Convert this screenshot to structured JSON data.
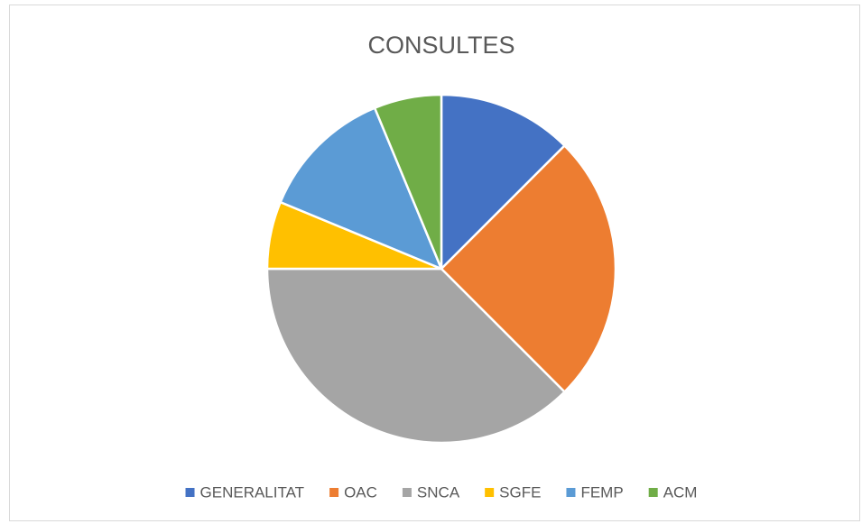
{
  "chart_data": {
    "type": "pie",
    "title": "CONSULTES",
    "categories": [
      "GENERALITAT",
      "OAC",
      "SNCA",
      "SGFE",
      "FEMP",
      "ACM"
    ],
    "values": [
      2,
      4,
      6,
      1,
      2,
      1
    ],
    "colors": [
      "#4472c4",
      "#ed7d31",
      "#a5a5a5",
      "#ffc000",
      "#5b9bd5",
      "#70ad47"
    ],
    "legend": "bottom"
  }
}
